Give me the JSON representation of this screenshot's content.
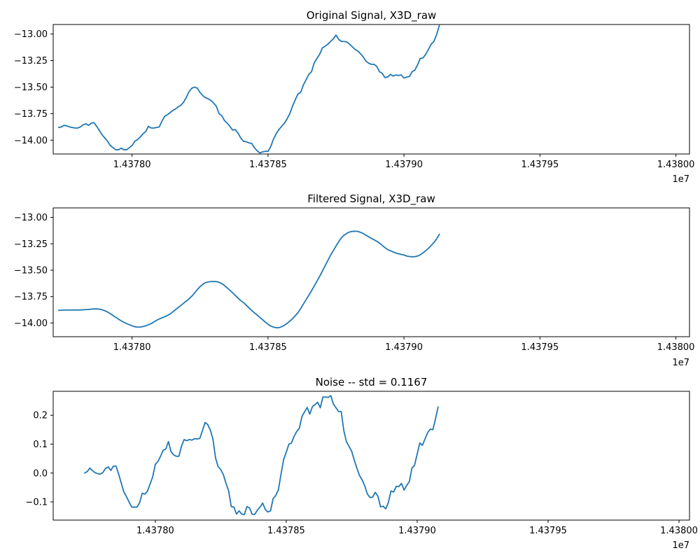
{
  "figure": {
    "line_color": "#1f77b4",
    "x_offset_label": "1e7"
  },
  "chart_data": [
    {
      "type": "line",
      "title": "Original Signal, X3D_raw",
      "xlabel": "",
      "ylabel": "",
      "xlim": [
        14377710,
        14380050
      ],
      "ylim": [
        -14.13,
        -12.91
      ],
      "grid": false,
      "x_ticks": [
        14378000,
        14378500,
        14379000,
        14379500,
        14380000
      ],
      "x_tick_labels": [
        "1.43780",
        "1.43785",
        "1.43790",
        "1.43795",
        "1.43800"
      ],
      "y_ticks": [
        -14.0,
        -13.75,
        -13.5,
        -13.25,
        -13.0
      ],
      "y_tick_labels": [
        "−14.00",
        "−13.75",
        "−13.50",
        "−13.25",
        "−13.00"
      ],
      "x_start": 14377730,
      "x_step": 10,
      "series": [
        {
          "name": "",
          "values": [
            -13.88,
            -13.875,
            -13.86,
            -13.865,
            -13.875,
            -13.88,
            -13.885,
            -13.885,
            -13.875,
            -13.855,
            -13.845,
            -13.86,
            -13.84,
            -13.835,
            -13.87,
            -13.91,
            -13.95,
            -13.98,
            -14.01,
            -14.05,
            -14.07,
            -14.09,
            -14.09,
            -14.075,
            -14.09,
            -14.09,
            -14.07,
            -14.05,
            -14.01,
            -13.995,
            -13.97,
            -13.94,
            -13.92,
            -13.87,
            -13.885,
            -13.885,
            -13.88,
            -13.875,
            -13.82,
            -13.775,
            -13.76,
            -13.74,
            -13.72,
            -13.705,
            -13.685,
            -13.67,
            -13.64,
            -13.595,
            -13.54,
            -13.51,
            -13.5,
            -13.51,
            -13.55,
            -13.58,
            -13.6,
            -13.61,
            -13.625,
            -13.65,
            -13.68,
            -13.75,
            -13.77,
            -13.815,
            -13.84,
            -13.87,
            -13.905,
            -13.9,
            -13.935,
            -13.98,
            -14.01,
            -14.015,
            -14.025,
            -14.03,
            -14.07,
            -14.1,
            -14.12,
            -14.11,
            -14.105,
            -14.105,
            -14.06,
            -13.99,
            -13.94,
            -13.9,
            -13.87,
            -13.84,
            -13.8,
            -13.75,
            -13.68,
            -13.62,
            -13.565,
            -13.55,
            -13.48,
            -13.43,
            -13.38,
            -13.355,
            -13.27,
            -13.23,
            -13.19,
            -13.13,
            -13.115,
            -13.095,
            -13.07,
            -13.045,
            -13.01,
            -13.05,
            -13.07,
            -13.07,
            -13.075,
            -13.095,
            -13.12,
            -13.145,
            -13.16,
            -13.185,
            -13.215,
            -13.255,
            -13.275,
            -13.285,
            -13.285,
            -13.305,
            -13.355,
            -13.37,
            -13.41,
            -13.405,
            -13.38,
            -13.395,
            -13.385,
            -13.39,
            -13.385,
            -13.415,
            -13.405,
            -13.4,
            -13.355,
            -13.34,
            -13.29,
            -13.23,
            -13.225,
            -13.19,
            -13.145,
            -13.095,
            -13.07,
            -13.005,
            -12.92
          ]
        }
      ]
    },
    {
      "type": "line",
      "title": "Filtered Signal, X3D_raw",
      "xlabel": "",
      "ylabel": "",
      "xlim": [
        14377710,
        14380050
      ],
      "ylim": [
        -14.13,
        -12.91
      ],
      "grid": false,
      "x_ticks": [
        14378000,
        14378500,
        14379000,
        14379500,
        14380000
      ],
      "x_tick_labels": [
        "1.43780",
        "1.43785",
        "1.43790",
        "1.43795",
        "1.43800"
      ],
      "y_ticks": [
        -14.0,
        -13.75,
        -13.5,
        -13.25,
        -13.0
      ],
      "y_tick_labels": [
        "−14.00",
        "−13.75",
        "−13.50",
        "−13.25",
        "−13.00"
      ],
      "x_start": 14377730,
      "x_step": 10,
      "series": [
        {
          "name": "",
          "values": [
            -13.88,
            -13.879,
            -13.878,
            -13.877,
            -13.877,
            -13.877,
            -13.877,
            -13.877,
            -13.876,
            -13.875,
            -13.873,
            -13.872,
            -13.869,
            -13.867,
            -13.866,
            -13.869,
            -13.875,
            -13.884,
            -13.896,
            -13.912,
            -13.929,
            -13.946,
            -13.963,
            -13.98,
            -13.994,
            -14.006,
            -14.016,
            -14.027,
            -14.036,
            -14.039,
            -14.039,
            -14.034,
            -14.027,
            -14.017,
            -14.006,
            -13.991,
            -13.975,
            -13.962,
            -13.951,
            -13.941,
            -13.929,
            -13.915,
            -13.894,
            -13.874,
            -13.853,
            -13.833,
            -13.812,
            -13.792,
            -13.77,
            -13.746,
            -13.715,
            -13.684,
            -13.656,
            -13.634,
            -13.618,
            -13.611,
            -13.608,
            -13.607,
            -13.608,
            -13.615,
            -13.627,
            -13.645,
            -13.668,
            -13.69,
            -13.715,
            -13.74,
            -13.765,
            -13.788,
            -13.807,
            -13.832,
            -13.857,
            -13.881,
            -13.904,
            -13.925,
            -13.947,
            -13.969,
            -13.992,
            -14.012,
            -14.029,
            -14.039,
            -14.045,
            -14.045,
            -14.036,
            -14.022,
            -14.004,
            -13.983,
            -13.96,
            -13.932,
            -13.902,
            -13.865,
            -13.821,
            -13.779,
            -13.738,
            -13.695,
            -13.65,
            -13.603,
            -13.559,
            -13.508,
            -13.458,
            -13.408,
            -13.359,
            -13.315,
            -13.272,
            -13.229,
            -13.193,
            -13.168,
            -13.151,
            -13.138,
            -13.132,
            -13.131,
            -13.133,
            -13.141,
            -13.153,
            -13.169,
            -13.183,
            -13.199,
            -13.212,
            -13.226,
            -13.245,
            -13.265,
            -13.286,
            -13.305,
            -13.316,
            -13.327,
            -13.337,
            -13.344,
            -13.351,
            -13.356,
            -13.366,
            -13.371,
            -13.373,
            -13.372,
            -13.366,
            -13.354,
            -13.335,
            -13.316,
            -13.293,
            -13.266,
            -13.238,
            -13.204,
            -13.16
          ]
        }
      ]
    },
    {
      "type": "line",
      "title": "Noise -- std = 0.1167",
      "xlabel": "",
      "ylabel": "",
      "xlim": [
        14377610,
        14380040
      ],
      "ylim": [
        -0.163,
        0.283
      ],
      "grid": false,
      "x_ticks": [
        14378000,
        14378500,
        14379000,
        14379500,
        14380000
      ],
      "x_tick_labels": [
        "1.43780",
        "1.43785",
        "1.43790",
        "1.43795",
        "1.43800"
      ],
      "y_ticks": [
        -0.1,
        0.0,
        0.1,
        0.2
      ],
      "y_tick_labels": [
        "−0.1",
        "0.0",
        "0.1",
        "0.2"
      ],
      "x_start": 14377730,
      "x_step": 10,
      "series": [
        {
          "name": "",
          "values": [
            0.0,
            0.005,
            0.017,
            0.008,
            0.001,
            -0.002,
            -0.004,
            0.002,
            0.016,
            0.021,
            0.009,
            0.024,
            0.024,
            -0.004,
            -0.035,
            -0.066,
            -0.082,
            -0.101,
            -0.118,
            -0.118,
            -0.118,
            -0.103,
            -0.07,
            -0.073,
            -0.063,
            -0.038,
            -0.013,
            0.03,
            0.04,
            0.058,
            0.079,
            0.083,
            0.109,
            0.074,
            0.063,
            0.058,
            0.058,
            0.093,
            0.116,
            0.112,
            0.116,
            0.114,
            0.119,
            0.118,
            0.12,
            0.147,
            0.175,
            0.168,
            0.149,
            0.118,
            0.052,
            0.022,
            0.012,
            -0.006,
            -0.036,
            -0.062,
            -0.116,
            -0.118,
            -0.142,
            -0.131,
            -0.142,
            -0.144,
            -0.116,
            -0.121,
            -0.143,
            -0.143,
            -0.128,
            -0.118,
            -0.104,
            -0.126,
            -0.135,
            -0.131,
            -0.088,
            -0.078,
            -0.058,
            -0.004,
            0.047,
            0.072,
            0.1,
            0.104,
            0.127,
            0.144,
            0.155,
            0.196,
            0.212,
            0.227,
            0.204,
            0.23,
            0.237,
            0.245,
            0.226,
            0.263,
            0.263,
            0.262,
            0.268,
            0.239,
            0.226,
            0.213,
            0.213,
            0.146,
            0.108,
            0.092,
            0.075,
            0.044,
            0.016,
            -0.009,
            -0.024,
            -0.045,
            -0.073,
            -0.085,
            -0.083,
            -0.067,
            -0.08,
            -0.117,
            -0.115,
            -0.124,
            -0.102,
            -0.062,
            -0.066,
            -0.046,
            -0.047,
            -0.036,
            -0.059,
            -0.043,
            -0.03,
            0.017,
            0.027,
            0.066,
            0.104,
            0.096,
            0.118,
            0.14,
            0.152,
            0.15,
            0.188,
            0.229
          ]
        }
      ]
    }
  ]
}
